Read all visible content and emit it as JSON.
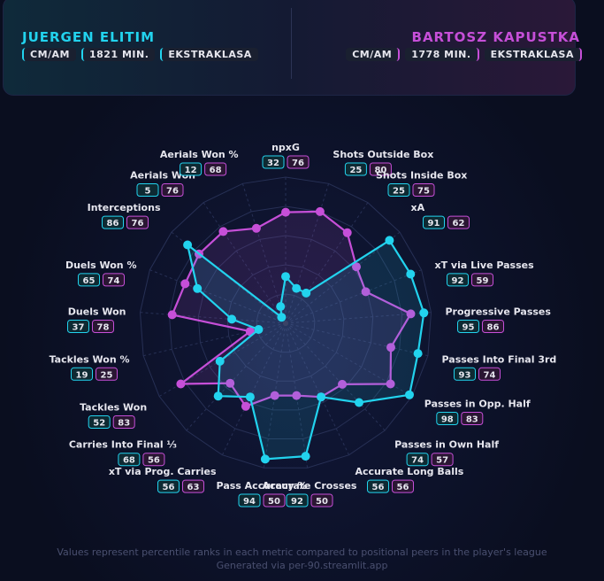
{
  "player1": {
    "name": "JUERGEN ELITIM",
    "chips": [
      "CM/AM",
      "1821 MIN.",
      "EKSTRAKLASA"
    ],
    "color": "#22d3ee"
  },
  "player2": {
    "name": "BARTOSZ KAPUSTKA",
    "chips": [
      "CM/AM",
      "1778 MIN.",
      "EKSTRAKLASA"
    ],
    "color": "#c64fd8"
  },
  "chart_data": {
    "type": "radar",
    "range": [
      0,
      100
    ],
    "categories": [
      "npxG",
      "Shots Outside Box",
      "Shots Inside Box",
      "xA",
      "xT via Live Passes",
      "Progressive Passes",
      "Passes Into Final 3rd",
      "Passes in Opp. Half",
      "Passes in Own Half",
      "Accurate Long Balls",
      "Accurate Crosses",
      "Pass Accuracy %",
      "xT via Prog. Carries",
      "Carries Into Final ⅓",
      "Tackles Won",
      "Tackles Won %",
      "Duels Won",
      "Duels Won %",
      "Interceptions",
      "Aerials Won",
      "Aerials Won %"
    ],
    "series": [
      {
        "name": "JUERGEN ELITIM",
        "color": "#22d3ee",
        "values": [
          32,
          25,
          25,
          91,
          92,
          95,
          93,
          98,
          74,
          56,
          92,
          94,
          56,
          68,
          52,
          19,
          37,
          65,
          86,
          5,
          12
        ]
      },
      {
        "name": "BARTOSZ KAPUSTKA",
        "color": "#c64fd8",
        "values": [
          76,
          80,
          75,
          62,
          59,
          86,
          74,
          83,
          57,
          56,
          50,
          50,
          63,
          56,
          83,
          25,
          78,
          74,
          76,
          76,
          68
        ]
      }
    ]
  },
  "footer": {
    "line1": "Values represent percentile ranks in each metric compared to positional peers in the player's league",
    "line2": "Generated via per-90.streamlit.app"
  }
}
